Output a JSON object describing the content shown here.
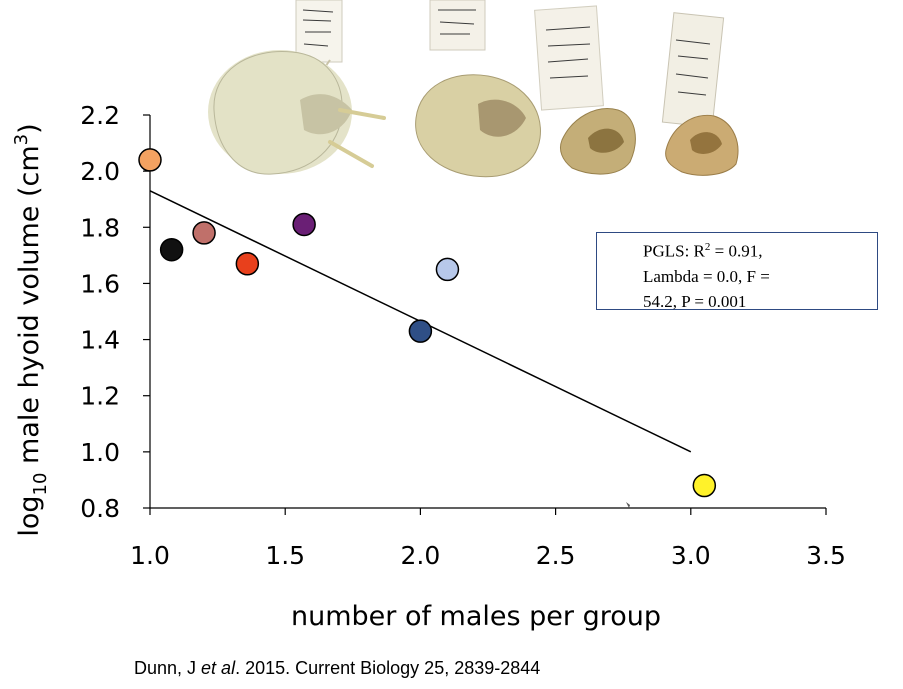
{
  "chart_data": {
    "type": "scatter",
    "title": "",
    "xlabel": "number of males per group",
    "ylabel": "log10 male hyoid volume (cm3)",
    "ylabel_parts": {
      "pre": "log",
      "sub": "10",
      "mid": " male hyoid volume (cm",
      "sup": "3",
      "post": ")"
    },
    "xlim": [
      1.0,
      3.5
    ],
    "ylim": [
      0.8,
      2.2
    ],
    "xticks": [
      "1.0",
      "1.5",
      "2.0",
      "2.5",
      "3.0",
      "3.5"
    ],
    "yticks": [
      "0.8",
      "1.0",
      "1.2",
      "1.4",
      "1.6",
      "1.8",
      "2.0",
      "2.2"
    ],
    "grid": false,
    "points": [
      {
        "x": 1.0,
        "y": 2.04,
        "color": "#f4a261"
      },
      {
        "x": 1.08,
        "y": 1.72,
        "color": "#111111"
      },
      {
        "x": 1.2,
        "y": 1.78,
        "color": "#c0706a"
      },
      {
        "x": 1.36,
        "y": 1.67,
        "color": "#e8401c"
      },
      {
        "x": 1.57,
        "y": 1.81,
        "color": "#6a1f75"
      },
      {
        "x": 2.0,
        "y": 1.43,
        "color": "#2f4f86"
      },
      {
        "x": 2.1,
        "y": 1.65,
        "color": "#b7c8ea"
      },
      {
        "x": 3.05,
        "y": 0.88,
        "color": "#fff22a"
      }
    ],
    "regression_line": {
      "x": [
        1.0,
        3.0
      ],
      "y": [
        1.93,
        1.0
      ]
    },
    "annotation": {
      "line1": "PGLS: R",
      "line1_sup": "2",
      "line1_rest": " = 0.91,",
      "line2": "Lambda = 0.0, F =",
      "line3": "54.2, P = 0.001"
    }
  },
  "citation": {
    "pre": "Dunn, J ",
    "italic": "et al",
    "post": ". 2015. Current Biology 25, 2839-2844"
  },
  "specimens": [
    {
      "name": "hyoid-large",
      "color": "#e4e3c9"
    },
    {
      "name": "hyoid-medium",
      "color": "#d8cfa2"
    },
    {
      "name": "hyoid-small",
      "color": "#c2ad76"
    },
    {
      "name": "hyoid-smallest",
      "color": "#c9a872"
    }
  ]
}
